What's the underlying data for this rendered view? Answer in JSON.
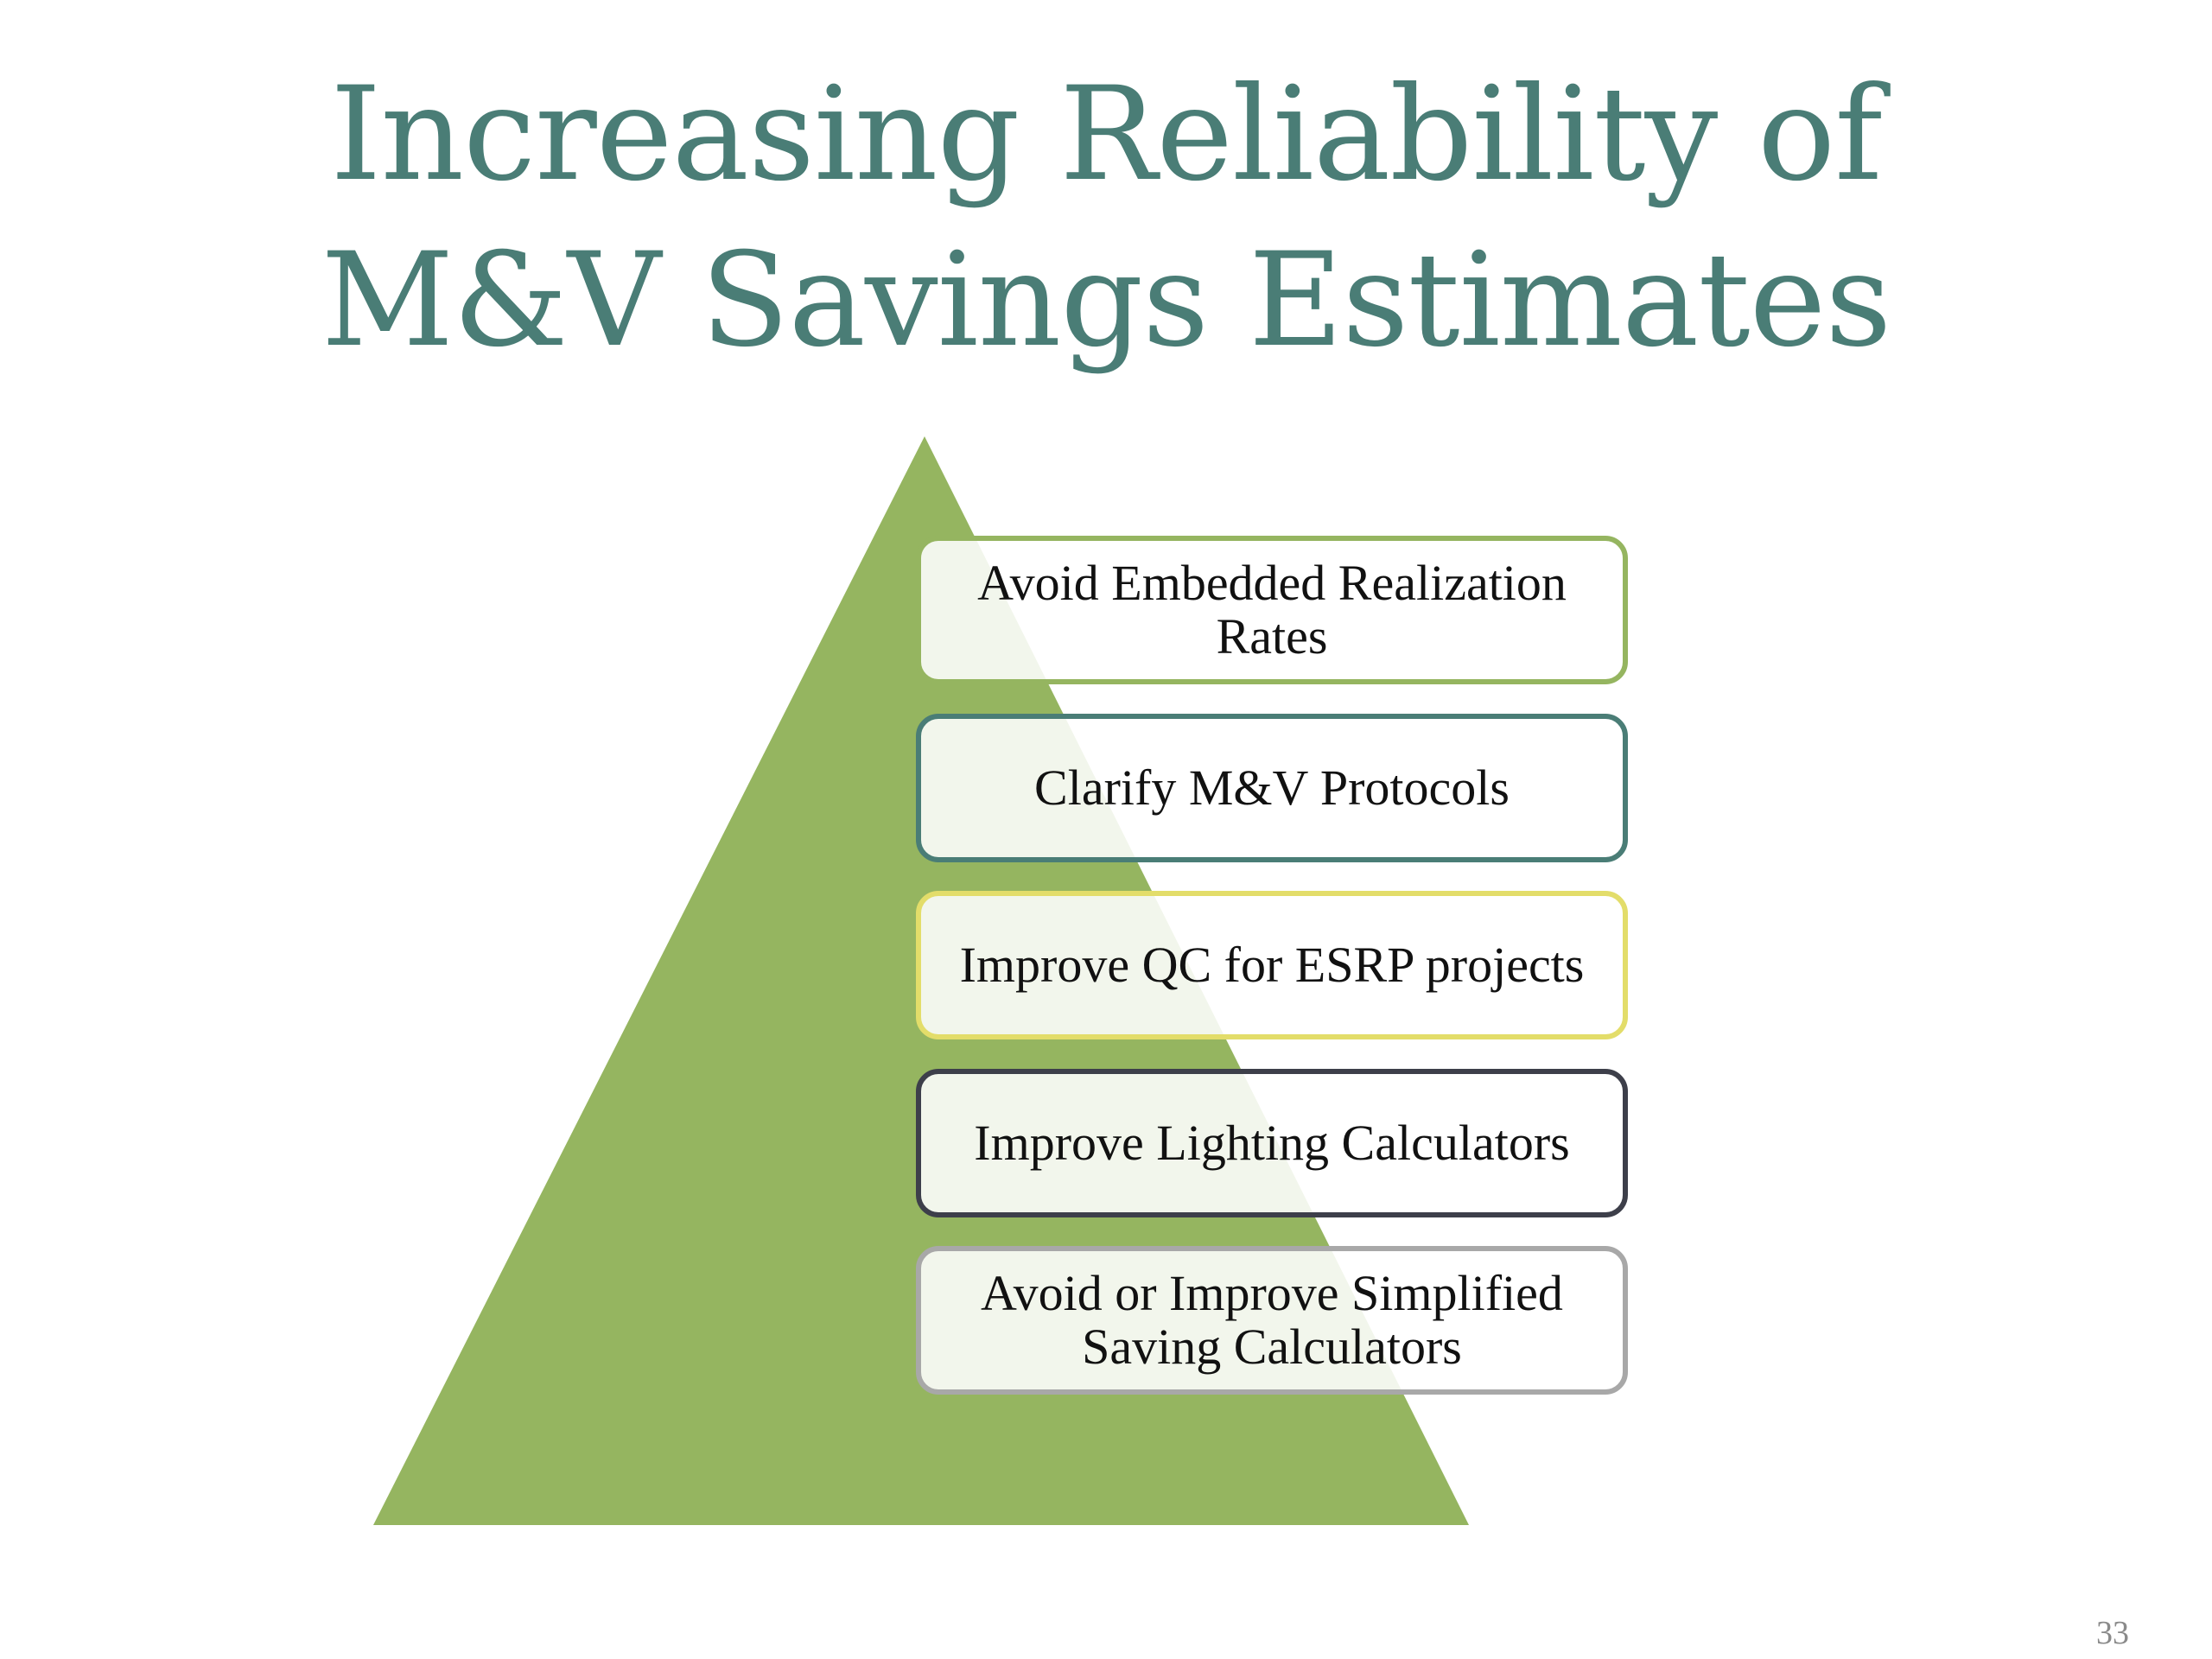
{
  "slide": {
    "title_line1": "Increasing Reliability of",
    "title_line2": "M&V Savings Estimates",
    "page_number": "33"
  },
  "pyramid": {
    "fill_color": "#95b560",
    "items": [
      {
        "label": "Avoid Embedded Realization Rates",
        "border_color": "#95b560"
      },
      {
        "label": "Clarify M&V Protocols",
        "border_color": "#4a7d76"
      },
      {
        "label": "Improve QC for ESRP projects",
        "border_color": "#e3dd6a"
      },
      {
        "label": "Improve Lighting Calculators",
        "border_color": "#3d3f4a"
      },
      {
        "label": "Avoid or Improve Simplified Saving Calculators",
        "border_color": "#a8a8a8"
      }
    ]
  }
}
